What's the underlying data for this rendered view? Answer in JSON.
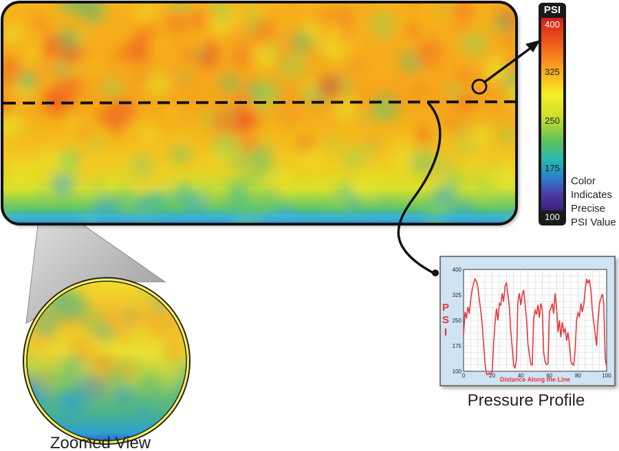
{
  "colorbar": {
    "title": "PSI",
    "ticks": [
      "400",
      "325",
      "250",
      "175",
      "100"
    ],
    "note": [
      "Color",
      "Indicates",
      "Precise",
      "PSI Value"
    ]
  },
  "profile": {
    "caption": "Pressure Profile",
    "ylabel_letters": [
      "P",
      "S",
      "I"
    ]
  },
  "zoom": {
    "caption": "Zoomed View"
  },
  "chart_data": {
    "type": "line",
    "title": "",
    "xlabel": "Distance Along the Line",
    "ylabel": "PSI",
    "xlim": [
      0,
      100
    ],
    "ylim": [
      100,
      400
    ],
    "x_ticks": [
      "0",
      "20",
      "40",
      "60",
      "80",
      "100"
    ],
    "y_ticks": [
      "400",
      "325",
      "250",
      "175",
      "100"
    ],
    "grid": true,
    "series": [
      {
        "color": "#e8343a",
        "x": [
          0,
          1,
          2,
          3,
          4,
          5,
          6,
          7,
          8,
          9,
          10,
          11,
          12,
          13,
          14,
          15,
          16,
          17,
          18,
          19,
          20,
          21,
          22,
          23,
          24,
          25,
          26,
          27,
          28,
          29,
          30,
          31,
          32,
          33,
          34,
          35,
          36,
          37,
          38,
          39,
          40,
          41,
          42,
          43,
          44,
          45,
          46,
          47,
          48,
          49,
          50,
          51,
          52,
          53,
          54,
          55,
          56,
          57,
          58,
          59,
          60,
          61,
          62,
          63,
          64,
          65,
          66,
          67,
          68,
          69,
          70,
          71,
          72,
          73,
          74,
          75,
          76,
          77,
          78,
          79,
          80,
          81,
          82,
          83,
          84,
          85,
          86,
          87,
          88,
          89,
          90,
          91,
          92,
          93,
          94,
          95,
          96,
          97,
          98,
          99,
          100
        ],
        "y": [
          205,
          275,
          255,
          290,
          270,
          310,
          340,
          360,
          372,
          365,
          348,
          310,
          280,
          240,
          180,
          125,
          92,
          90,
          95,
          92,
          98,
          180,
          245,
          285,
          250,
          300,
          295,
          330,
          305,
          352,
          360,
          325,
          290,
          220,
          170,
          118,
          110,
          138,
          305,
          330,
          295,
          325,
          340,
          300,
          255,
          180,
          150,
          120,
          118,
          255,
          280,
          268,
          296,
          258,
          300,
          285,
          155,
          128,
          120,
          122,
          275,
          285,
          300,
          270,
          330,
          288,
          215,
          250,
          200,
          245,
          215,
          225,
          190,
          215,
          180,
          130,
          120,
          118,
          160,
          250,
          272,
          262,
          300,
          275,
          295,
          340,
          372,
          360,
          368,
          340,
          280,
          245,
          210,
          175,
          250,
          300,
          315,
          328,
          300,
          140,
          112
        ]
      }
    ]
  }
}
